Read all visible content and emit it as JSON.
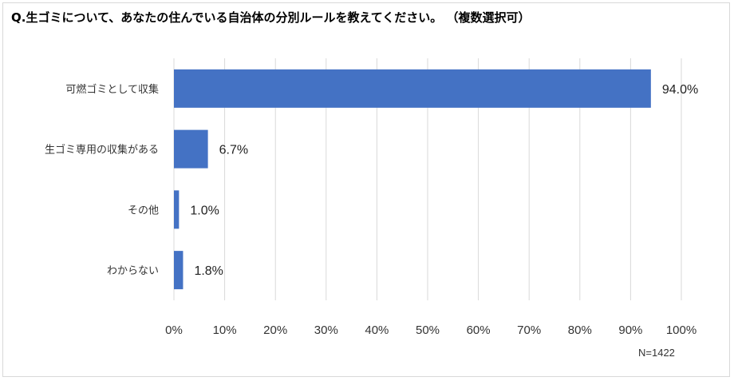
{
  "chart_data": {
    "type": "bar",
    "orientation": "horizontal",
    "title": "Q.生ゴミについて、あなたの住んでいる自治体の分別ルールを教えてください。 （複数選択可）",
    "categories": [
      "可燃ゴミとして収集",
      "生ゴミ専用の収集がある",
      "その他",
      "わからない"
    ],
    "values": [
      94.0,
      6.7,
      1.0,
      1.8
    ],
    "data_labels": [
      "94.0%",
      "6.7%",
      "1.0%",
      "1.8%"
    ],
    "xlim": [
      0,
      100
    ],
    "x_ticks": [
      0,
      10,
      20,
      30,
      40,
      50,
      60,
      70,
      80,
      90,
      100
    ],
    "x_tick_labels": [
      "0%",
      "10%",
      "20%",
      "30%",
      "40%",
      "50%",
      "60%",
      "70%",
      "80%",
      "90%",
      "100%"
    ],
    "grid": "vertical",
    "bar_color": "#4472c4",
    "grid_color": "#d9d9d9",
    "footnote": "N=1422"
  }
}
